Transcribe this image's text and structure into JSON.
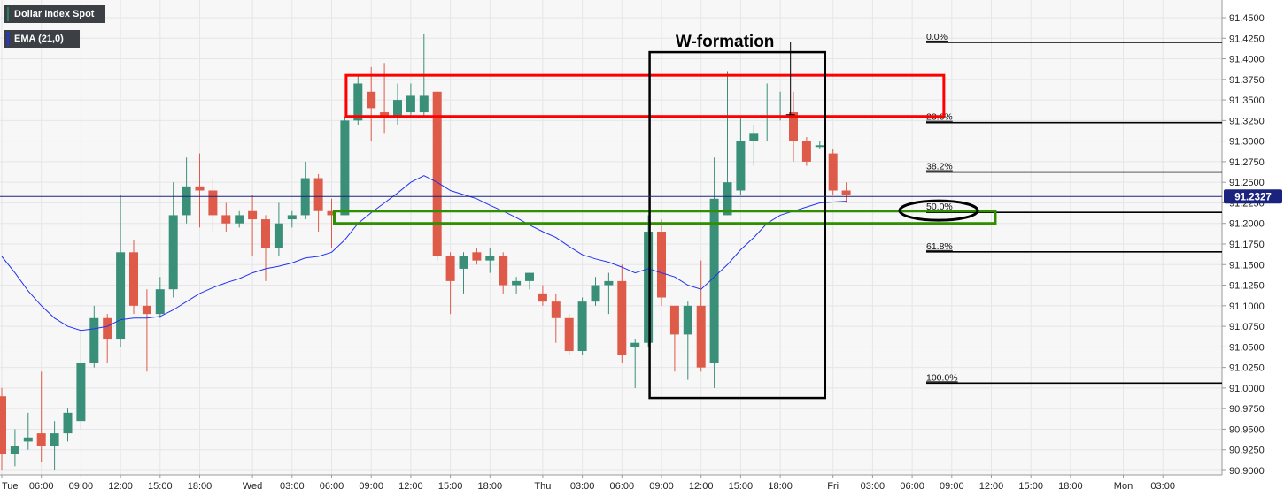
{
  "legend": {
    "symbol": "Dollar Index Spot",
    "indicator": "EMA (21,0)",
    "symbol_color": "#2e7d61",
    "indicator_color": "#2233ee"
  },
  "colors": {
    "up": "#3a8f78",
    "down": "#de5a49",
    "ema": "#2233ee",
    "resistance_box": "#ff0000",
    "support_box": "#2f8f00",
    "frame": "#000000",
    "price_badge": "#1a237e"
  },
  "annotations": {
    "w_label": "W-formation",
    "current_price": "91.2327"
  },
  "chart_data": {
    "type": "candlestick",
    "title": "",
    "xlabel": "",
    "ylabel": "",
    "ylim": [
      90.9,
      91.45
    ],
    "grid": true,
    "y_ticks": [
      "91.4500",
      "91.4250",
      "91.4000",
      "91.3750",
      "91.3500",
      "91.3250",
      "91.3000",
      "91.2750",
      "91.2500",
      "91.2250",
      "91.2000",
      "91.1750",
      "91.1500",
      "91.1250",
      "91.1000",
      "91.0750",
      "91.0500",
      "91.0250",
      "91.0000",
      "90.9750",
      "90.9500",
      "90.9250",
      "90.9000"
    ],
    "x_ticks": [
      {
        "i": 0,
        "label": "Tue"
      },
      {
        "i": 3,
        "label": "06:00"
      },
      {
        "i": 6,
        "label": "09:00"
      },
      {
        "i": 9,
        "label": "12:00"
      },
      {
        "i": 12,
        "label": "15:00"
      },
      {
        "i": 15,
        "label": "18:00"
      },
      {
        "i": 19,
        "label": "Wed"
      },
      {
        "i": 22,
        "label": "03:00"
      },
      {
        "i": 25,
        "label": "06:00"
      },
      {
        "i": 28,
        "label": "09:00"
      },
      {
        "i": 31,
        "label": "12:00"
      },
      {
        "i": 34,
        "label": "15:00"
      },
      {
        "i": 37,
        "label": "18:00"
      },
      {
        "i": 41,
        "label": "Thu"
      },
      {
        "i": 44,
        "label": "03:00"
      },
      {
        "i": 47,
        "label": "06:00"
      },
      {
        "i": 50,
        "label": "09:00"
      },
      {
        "i": 53,
        "label": "12:00"
      },
      {
        "i": 56,
        "label": "15:00"
      },
      {
        "i": 59,
        "label": "18:00"
      },
      {
        "i": 63,
        "label": "Fri"
      },
      {
        "i": 66,
        "label": "03:00"
      },
      {
        "i": 69,
        "label": "06:00"
      },
      {
        "i": 72,
        "label": "09:00"
      },
      {
        "i": 75,
        "label": "12:00"
      },
      {
        "i": 78,
        "label": "15:00"
      },
      {
        "i": 81,
        "label": "18:00"
      },
      {
        "i": 85,
        "label": "Mon"
      },
      {
        "i": 88,
        "label": "03:00"
      }
    ],
    "candles": [
      {
        "o": 90.99,
        "h": 91.0,
        "l": 90.9,
        "c": 90.92
      },
      {
        "o": 90.92,
        "h": 90.95,
        "l": 90.905,
        "c": 90.93
      },
      {
        "o": 90.935,
        "h": 90.97,
        "l": 90.925,
        "c": 90.94
      },
      {
        "o": 90.945,
        "h": 91.02,
        "l": 90.91,
        "c": 90.93
      },
      {
        "o": 90.93,
        "h": 90.96,
        "l": 90.9,
        "c": 90.945
      },
      {
        "o": 90.945,
        "h": 90.975,
        "l": 90.935,
        "c": 90.97
      },
      {
        "o": 90.96,
        "h": 91.07,
        "l": 90.95,
        "c": 91.03
      },
      {
        "o": 91.03,
        "h": 91.1,
        "l": 91.025,
        "c": 91.085
      },
      {
        "o": 91.085,
        "h": 91.09,
        "l": 91.03,
        "c": 91.06
      },
      {
        "o": 91.06,
        "h": 91.235,
        "l": 91.05,
        "c": 91.165
      },
      {
        "o": 91.165,
        "h": 91.18,
        "l": 91.09,
        "c": 91.1
      },
      {
        "o": 91.1,
        "h": 91.12,
        "l": 91.02,
        "c": 91.09
      },
      {
        "o": 91.09,
        "h": 91.135,
        "l": 91.085,
        "c": 91.12
      },
      {
        "o": 91.12,
        "h": 91.25,
        "l": 91.11,
        "c": 91.21
      },
      {
        "o": 91.21,
        "h": 91.28,
        "l": 91.2,
        "c": 91.245
      },
      {
        "o": 91.245,
        "h": 91.285,
        "l": 91.195,
        "c": 91.24
      },
      {
        "o": 91.24,
        "h": 91.255,
        "l": 91.19,
        "c": 91.21
      },
      {
        "o": 91.21,
        "h": 91.225,
        "l": 91.19,
        "c": 91.2
      },
      {
        "o": 91.2,
        "h": 91.215,
        "l": 91.195,
        "c": 91.21
      },
      {
        "o": 91.215,
        "h": 91.235,
        "l": 91.16,
        "c": 91.205
      },
      {
        "o": 91.205,
        "h": 91.21,
        "l": 91.13,
        "c": 91.17
      },
      {
        "o": 91.17,
        "h": 91.225,
        "l": 91.16,
        "c": 91.2
      },
      {
        "o": 91.205,
        "h": 91.215,
        "l": 91.195,
        "c": 91.21
      },
      {
        "o": 91.21,
        "h": 91.275,
        "l": 91.205,
        "c": 91.255
      },
      {
        "o": 91.255,
        "h": 91.26,
        "l": 91.19,
        "c": 91.215
      },
      {
        "o": 91.215,
        "h": 91.23,
        "l": 91.17,
        "c": 91.21
      },
      {
        "o": 91.21,
        "h": 91.33,
        "l": 91.21,
        "c": 91.325
      },
      {
        "o": 91.325,
        "h": 91.38,
        "l": 91.32,
        "c": 91.37
      },
      {
        "o": 91.36,
        "h": 91.39,
        "l": 91.3,
        "c": 91.34
      },
      {
        "o": 91.335,
        "h": 91.395,
        "l": 91.31,
        "c": 91.33
      },
      {
        "o": 91.33,
        "h": 91.37,
        "l": 91.32,
        "c": 91.35
      },
      {
        "o": 91.335,
        "h": 91.37,
        "l": 91.33,
        "c": 91.355
      },
      {
        "o": 91.335,
        "h": 91.43,
        "l": 91.33,
        "c": 91.355
      },
      {
        "o": 91.36,
        "h": 91.36,
        "l": 91.155,
        "c": 91.16
      },
      {
        "o": 91.16,
        "h": 91.165,
        "l": 91.09,
        "c": 91.13
      },
      {
        "o": 91.145,
        "h": 91.165,
        "l": 91.115,
        "c": 91.16
      },
      {
        "o": 91.165,
        "h": 91.17,
        "l": 91.15,
        "c": 91.155
      },
      {
        "o": 91.155,
        "h": 91.17,
        "l": 91.14,
        "c": 91.16
      },
      {
        "o": 91.16,
        "h": 91.165,
        "l": 91.115,
        "c": 91.125
      },
      {
        "o": 91.125,
        "h": 91.135,
        "l": 91.115,
        "c": 91.13
      },
      {
        "o": 91.13,
        "h": 91.14,
        "l": 91.12,
        "c": 91.14
      },
      {
        "o": 91.115,
        "h": 91.125,
        "l": 91.1,
        "c": 91.105
      },
      {
        "o": 91.105,
        "h": 91.115,
        "l": 91.055,
        "c": 91.085
      },
      {
        "o": 91.085,
        "h": 91.09,
        "l": 91.04,
        "c": 91.045
      },
      {
        "o": 91.045,
        "h": 91.11,
        "l": 91.04,
        "c": 91.105
      },
      {
        "o": 91.105,
        "h": 91.135,
        "l": 91.1,
        "c": 91.125
      },
      {
        "o": 91.125,
        "h": 91.14,
        "l": 91.09,
        "c": 91.13
      },
      {
        "o": 91.13,
        "h": 91.15,
        "l": 91.03,
        "c": 91.04
      },
      {
        "o": 91.05,
        "h": 91.06,
        "l": 91.0,
        "c": 91.055
      },
      {
        "o": 91.055,
        "h": 91.21,
        "l": 91.05,
        "c": 91.19
      },
      {
        "o": 91.19,
        "h": 91.205,
        "l": 91.1,
        "c": 91.11
      },
      {
        "o": 91.1,
        "h": 91.1,
        "l": 91.02,
        "c": 91.065
      },
      {
        "o": 91.065,
        "h": 91.105,
        "l": 91.01,
        "c": 91.1
      },
      {
        "o": 91.1,
        "h": 91.155,
        "l": 91.02,
        "c": 91.025
      },
      {
        "o": 91.03,
        "h": 91.28,
        "l": 91.0,
        "c": 91.23
      },
      {
        "o": 91.21,
        "h": 91.385,
        "l": 91.21,
        "c": 91.25
      },
      {
        "o": 91.24,
        "h": 91.33,
        "l": 91.235,
        "c": 91.3
      },
      {
        "o": 91.3,
        "h": 91.32,
        "l": 91.27,
        "c": 91.31
      },
      {
        "o": 91.33,
        "h": 91.37,
        "l": 91.3,
        "c": 91.33
      },
      {
        "o": 91.33,
        "h": 91.36,
        "l": 91.325,
        "c": 91.33
      },
      {
        "o": 91.335,
        "h": 91.36,
        "l": 91.275,
        "c": 91.3
      },
      {
        "o": 91.3,
        "h": 91.305,
        "l": 91.27,
        "c": 91.275
      },
      {
        "o": 91.295,
        "h": 91.3,
        "l": 91.29,
        "c": 91.295
      },
      {
        "o": 91.285,
        "h": 91.29,
        "l": 91.235,
        "c": 91.24
      },
      {
        "o": 91.24,
        "h": 91.25,
        "l": 91.225,
        "c": 91.235
      }
    ],
    "ema_values": [
      91.16,
      91.14,
      91.118,
      91.1,
      91.085,
      91.075,
      91.07,
      91.072,
      91.075,
      91.083,
      91.085,
      91.085,
      91.087,
      91.095,
      91.105,
      91.115,
      91.122,
      91.128,
      91.133,
      91.14,
      91.145,
      91.148,
      91.152,
      91.158,
      91.16,
      91.165,
      91.18,
      91.2,
      91.213,
      91.225,
      91.237,
      91.25,
      91.258,
      91.25,
      91.24,
      91.235,
      91.23,
      91.222,
      91.215,
      91.207,
      91.198,
      91.19,
      91.183,
      91.172,
      91.162,
      91.157,
      91.153,
      91.147,
      91.14,
      91.145,
      91.14,
      91.135,
      91.125,
      91.12,
      91.135,
      91.15,
      91.168,
      91.183,
      91.2,
      91.21,
      91.215,
      91.22,
      91.225,
      91.226,
      91.227
    ],
    "fibonacci": [
      {
        "label": "0.0%",
        "value": 91.42
      },
      {
        "label": "23.6%",
        "value": 91.3225
      },
      {
        "label": "38.2%",
        "value": 91.2625
      },
      {
        "label": "50.0%",
        "value": 91.2135
      },
      {
        "label": "61.8%",
        "value": 91.1655
      },
      {
        "label": "100.0%",
        "value": 91.006
      }
    ],
    "zones": {
      "resistance": {
        "from_i": 26.1,
        "to_i": 71.4,
        "low": 91.33,
        "high": 91.38
      },
      "support": {
        "from_i": 25.2,
        "to_i": 75.3,
        "low": 91.2,
        "high": 91.215
      },
      "w_formation": {
        "from_i": 49.1,
        "to_i": 62.4,
        "low": 90.988,
        "high": 91.408
      }
    },
    "current_price_value": 91.2327
  }
}
